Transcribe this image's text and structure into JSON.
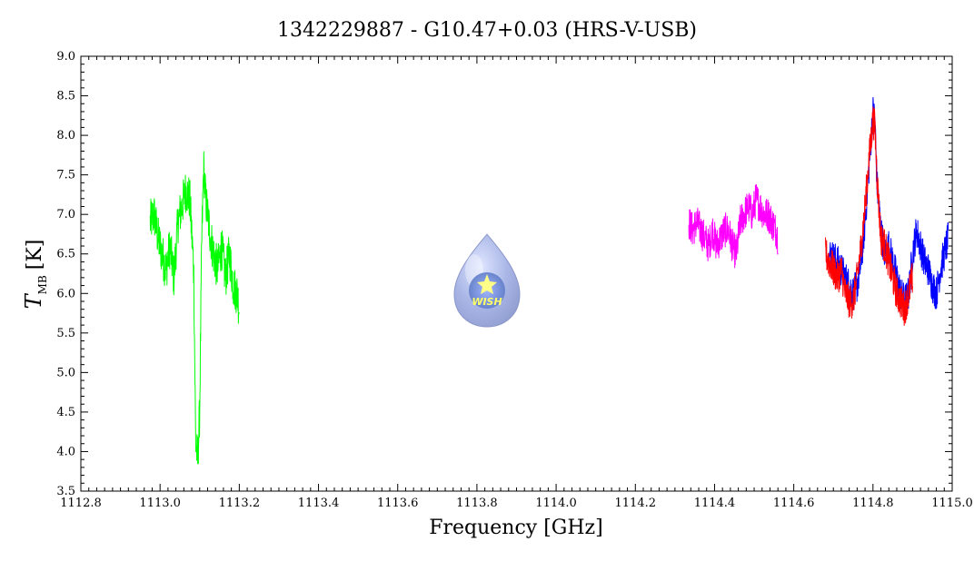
{
  "chart_data": {
    "type": "line",
    "title": "1342229887 - G10.47+0.03 (HRS-V-USB)",
    "xlabel": "Frequency [GHz]",
    "ylabel_main": "T",
    "ylabel_sub": "MB",
    "ylabel_unit": "[K]",
    "xlim": [
      1112.8,
      1115.0
    ],
    "ylim": [
      3.5,
      9.0
    ],
    "x_ticks": [
      1112.8,
      1113.0,
      1113.2,
      1113.4,
      1113.6,
      1113.8,
      1114.0,
      1114.2,
      1114.4,
      1114.6,
      1114.8,
      1115.0
    ],
    "x_tick_labels": [
      "1112.8",
      "1113.0",
      "1113.2",
      "1113.4",
      "1113.6",
      "1113.8",
      "1114.0",
      "1114.2",
      "1114.4",
      "1114.6",
      "1114.8",
      "1115.0"
    ],
    "y_ticks": [
      3.5,
      4.0,
      4.5,
      5.0,
      5.5,
      6.0,
      6.5,
      7.0,
      7.5,
      8.0,
      8.5,
      9.0
    ],
    "y_tick_labels": [
      "3.5",
      "4.0",
      "4.5",
      "5.0",
      "5.5",
      "6.0",
      "6.5",
      "7.0",
      "7.5",
      "8.0",
      "8.5",
      "9.0"
    ],
    "grid": false,
    "logo": {
      "text": "WISH",
      "colors": {
        "drop": "#9aa6d8",
        "core": "#6f8fd0",
        "star": "#ffff66"
      }
    },
    "series": [
      {
        "color": "#00ff00",
        "x": [
          1112.975,
          1112.985,
          1112.995,
          1113.005,
          1113.015,
          1113.025,
          1113.035,
          1113.045,
          1113.055,
          1113.065,
          1113.075,
          1113.085,
          1113.09,
          1113.095,
          1113.1,
          1113.105,
          1113.11,
          1113.115,
          1113.125,
          1113.135,
          1113.145,
          1113.155,
          1113.165,
          1113.175,
          1113.185,
          1113.195,
          1113.2
        ],
        "y": [
          6.9,
          7.0,
          6.7,
          6.5,
          6.3,
          6.6,
          6.2,
          6.9,
          7.1,
          7.3,
          7.2,
          6.3,
          4.1,
          3.9,
          4.5,
          6.6,
          7.6,
          7.2,
          6.8,
          6.5,
          6.3,
          6.6,
          6.2,
          6.5,
          6.1,
          6.0,
          5.8
        ],
        "noise": 0.28
      },
      {
        "color": "#ff00ff",
        "x": [
          1114.335,
          1114.345,
          1114.355,
          1114.365,
          1114.375,
          1114.385,
          1114.395,
          1114.405,
          1114.415,
          1114.425,
          1114.435,
          1114.445,
          1114.455,
          1114.465,
          1114.475,
          1114.485,
          1114.495,
          1114.505,
          1114.515,
          1114.525,
          1114.535,
          1114.545,
          1114.555,
          1114.56
        ],
        "y": [
          6.9,
          6.8,
          6.9,
          6.8,
          6.7,
          6.6,
          6.8,
          6.6,
          6.7,
          6.8,
          6.8,
          6.6,
          6.5,
          6.9,
          7.0,
          7.1,
          7.0,
          7.2,
          7.1,
          7.0,
          7.0,
          6.9,
          6.8,
          6.7
        ],
        "noise": 0.22
      },
      {
        "color": "#0000ff",
        "x": [
          1114.69,
          1114.71,
          1114.73,
          1114.75,
          1114.76,
          1114.77,
          1114.78,
          1114.79,
          1114.8,
          1114.805,
          1114.81,
          1114.82,
          1114.83,
          1114.84,
          1114.85,
          1114.86,
          1114.87,
          1114.88,
          1114.89,
          1114.9,
          1114.91,
          1114.92,
          1114.93,
          1114.94,
          1114.95,
          1114.96,
          1114.97,
          1114.98,
          1114.99
        ],
        "y": [
          6.5,
          6.4,
          6.2,
          6.0,
          6.1,
          6.4,
          6.9,
          7.6,
          8.3,
          8.2,
          7.4,
          6.8,
          6.5,
          6.6,
          6.4,
          6.2,
          6.0,
          5.9,
          6.0,
          6.5,
          6.8,
          6.6,
          6.4,
          6.3,
          6.1,
          6.0,
          6.3,
          6.5,
          6.7
        ],
        "noise": 0.22
      },
      {
        "color": "#ff0000",
        "x": [
          1114.68,
          1114.69,
          1114.7,
          1114.71,
          1114.72,
          1114.73,
          1114.74,
          1114.75,
          1114.76,
          1114.77,
          1114.78,
          1114.79,
          1114.8,
          1114.805,
          1114.81,
          1114.82,
          1114.83,
          1114.84,
          1114.85,
          1114.86,
          1114.87,
          1114.88,
          1114.89,
          1114.9
        ],
        "y": [
          6.5,
          6.4,
          6.3,
          6.2,
          6.3,
          6.0,
          5.9,
          5.9,
          6.2,
          6.6,
          7.1,
          7.7,
          8.2,
          8.1,
          7.5,
          6.7,
          6.6,
          6.4,
          6.2,
          6.0,
          5.9,
          5.8,
          6.0,
          6.2
        ],
        "noise": 0.22
      }
    ]
  }
}
